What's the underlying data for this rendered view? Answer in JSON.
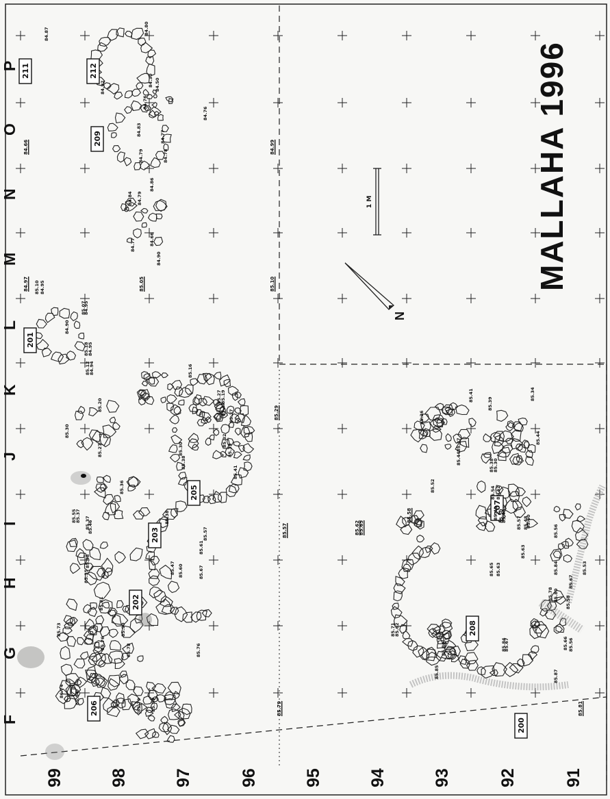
{
  "title": "MALLAHA 1996",
  "scale_label": "1 M",
  "north_label": "N",
  "column_labels": [
    "F",
    "G",
    "H",
    "I",
    "J",
    "K",
    "L",
    "M",
    "N",
    "O",
    "P"
  ],
  "row_labels": [
    "99",
    "98",
    "97",
    "96",
    "95",
    "94",
    "93",
    "92",
    "91"
  ],
  "loci": [
    "201",
    "202",
    "203",
    "205",
    "206",
    "207",
    "208",
    "209",
    "211",
    "212",
    "200"
  ],
  "elevations_underlined": [
    "84.66",
    "84.97",
    "84.99",
    "85.05",
    "85.10",
    "85.29",
    "85.57",
    "85.58",
    "85.62",
    "85.65",
    "85.79",
    "85.81"
  ],
  "elevations": [
    "84.87",
    "84.80",
    "84.92",
    "84.30",
    "84.50",
    "84.76",
    "84.76",
    "84.79",
    "84.78",
    "84.77",
    "84.83",
    "84.84",
    "84.79",
    "84.86",
    "84.77",
    "84.66",
    "84.90",
    "85.10",
    "84.95",
    "85.07",
    "84.95",
    "84.90",
    "85.18",
    "84.95",
    "85.12",
    "84.94",
    "85.30",
    "85.27",
    "85.20",
    "85.16",
    "85.27",
    "85.19",
    "85.37",
    "85.27",
    "85.30",
    "85.38",
    "85.32",
    "85.33",
    "85.41",
    "85.55",
    "85.37",
    "85.37",
    "85.46",
    "85.38",
    "85.35",
    "85.36",
    "85.38",
    "85.47",
    "85.60",
    "85.57",
    "85.61",
    "85.67",
    "85.73",
    "85.76",
    "85.81",
    "85.90",
    "85.78",
    "85.76",
    "86.74",
    "85.94",
    "85.79",
    "85.90",
    "85.36",
    "85.41",
    "85.39",
    "85.34",
    "85.44",
    "85.37",
    "85.44",
    "85.52",
    "85.38",
    "85.30",
    "85.54",
    "85.42",
    "85.43",
    "85.50",
    "85.43",
    "85.57",
    "85.50",
    "85.48",
    "85.56",
    "85.84",
    "85.53",
    "85.67",
    "85.78",
    "85.80",
    "85.58",
    "85.71",
    "85.62",
    "85.86",
    "85.84",
    "85.67",
    "85.85",
    "85.87",
    "85.63",
    "85.65",
    "85.63",
    "85.66",
    "85.56"
  ]
}
